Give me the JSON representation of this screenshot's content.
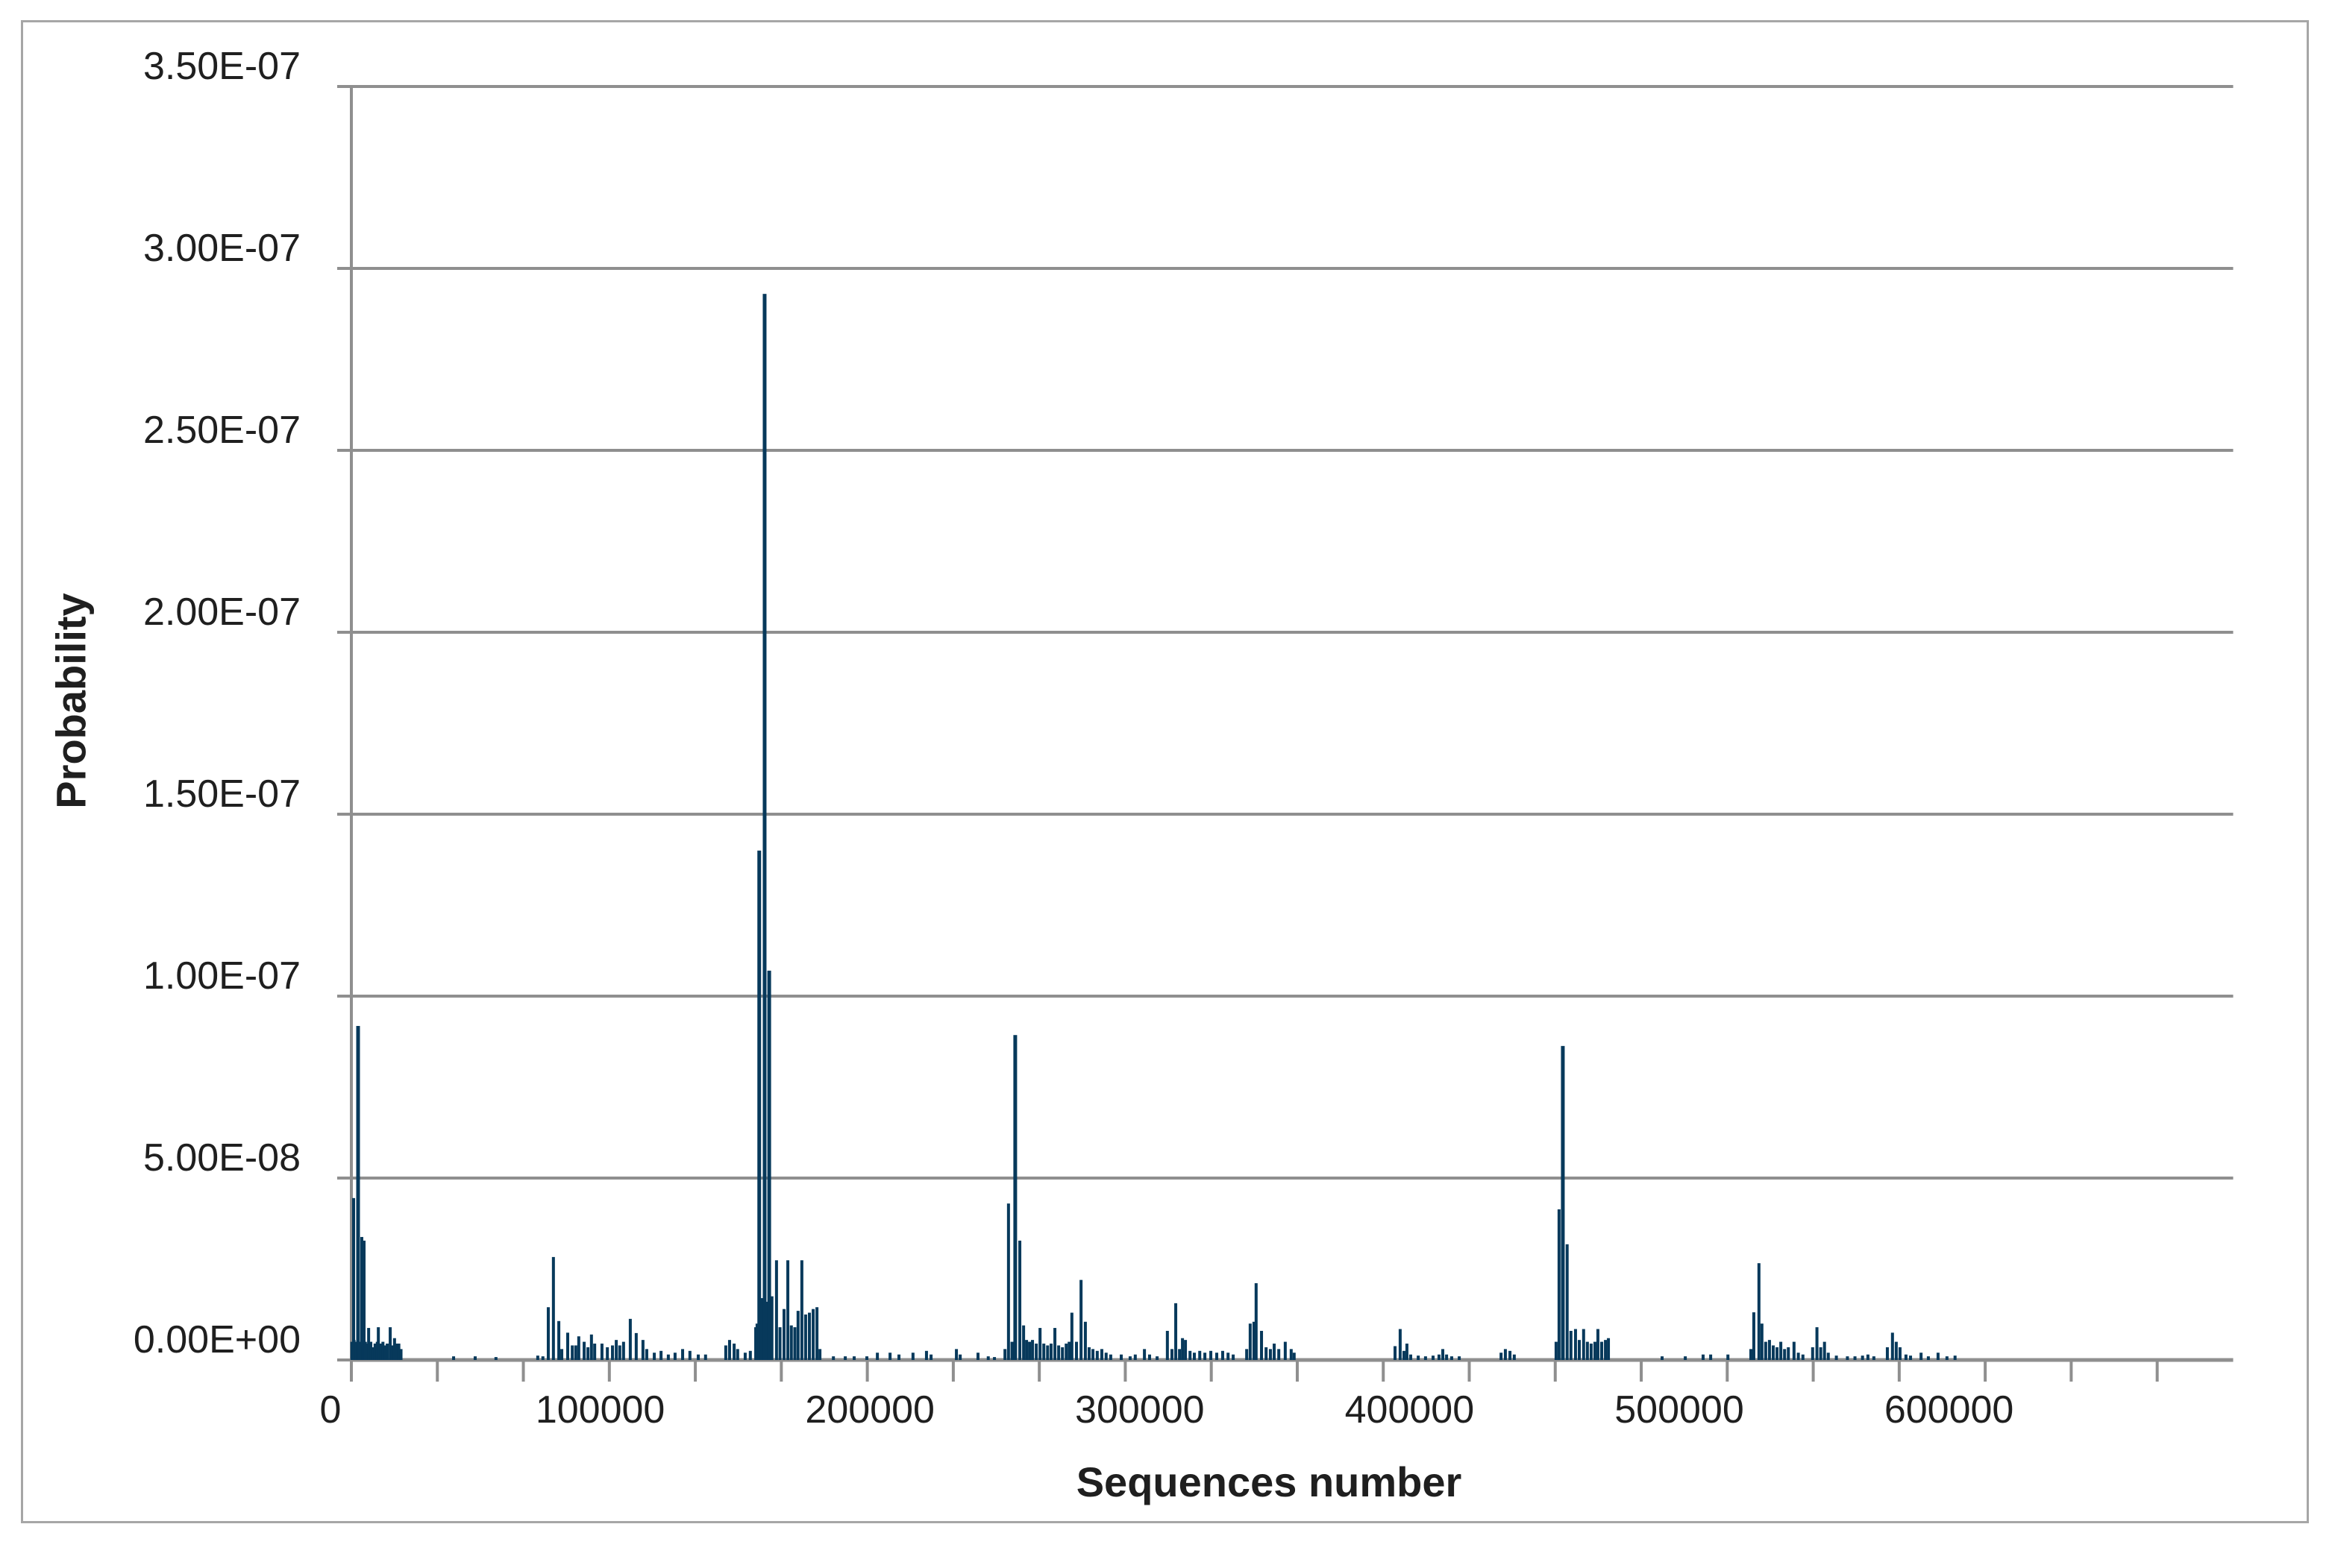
{
  "chart_data": {
    "type": "bar",
    "title": "",
    "xlabel": "Sequences number",
    "ylabel": "Probability",
    "x_tick_labels": [
      "0",
      "100000",
      "200000",
      "300000",
      "400000",
      "500000",
      "600000"
    ],
    "y_tick_labels": [
      "0.00E+00",
      "5.00E-08",
      "1.00E-07",
      "1.50E-07",
      "2.00E-07",
      "2.50E-07",
      "3.00E-07",
      "3.50E-07"
    ],
    "xlim": [
      0,
      697600
    ],
    "ylim": [
      0,
      3.5e-07
    ],
    "x_label_interval": 100000,
    "y_major_unit": 5e-08,
    "grid": "horizontal-only",
    "legend": "none",
    "bar_color": "#07395b",
    "gridline_color": "#8f8f8f",
    "border_color": "#a6a6a6",
    "text_color": "#1f1f1f",
    "points_format": "[sequence_number, probability]",
    "points": [
      [
        200,
        5e-09
      ],
      [
        830,
        4.45e-08
      ],
      [
        1000,
        5.5e-09
      ],
      [
        1800,
        5e-09
      ],
      [
        2490,
        9.18e-08
      ],
      [
        2900,
        5e-09
      ],
      [
        3600,
        4.5e-09
      ],
      [
        3870,
        3.38e-08
      ],
      [
        4400,
        4e-09
      ],
      [
        4700,
        3.28e-08
      ],
      [
        5200,
        5e-09
      ],
      [
        6000,
        4.5e-09
      ],
      [
        6400,
        8.8e-09
      ],
      [
        7200,
        5e-09
      ],
      [
        8000,
        3.5e-09
      ],
      [
        8800,
        4.5e-09
      ],
      [
        9600,
        5e-09
      ],
      [
        10000,
        9e-09
      ],
      [
        10900,
        4.5e-09
      ],
      [
        11700,
        5e-09
      ],
      [
        12500,
        4e-09
      ],
      [
        13300,
        4.5e-09
      ],
      [
        14400,
        9e-09
      ],
      [
        15200,
        4e-09
      ],
      [
        16000,
        6e-09
      ],
      [
        16800,
        4.5e-09
      ],
      [
        17600,
        4.5e-09
      ],
      [
        18400,
        3e-09
      ],
      [
        37900,
        1e-09
      ],
      [
        45900,
        1e-09
      ],
      [
        53600,
        8e-10
      ],
      [
        69100,
        1.2e-09
      ],
      [
        71000,
        1e-09
      ],
      [
        73000,
        1.45e-08
      ],
      [
        74900,
        2.83e-08
      ],
      [
        76900,
        1.07e-08
      ],
      [
        78000,
        3e-09
      ],
      [
        80200,
        7.5e-09
      ],
      [
        81900,
        4e-09
      ],
      [
        83200,
        4e-09
      ],
      [
        84300,
        6.5e-09
      ],
      [
        86300,
        5e-09
      ],
      [
        87700,
        3.5e-09
      ],
      [
        89000,
        7e-09
      ],
      [
        90200,
        4.5e-09
      ],
      [
        92900,
        4.5e-09
      ],
      [
        94900,
        3.5e-09
      ],
      [
        96800,
        4e-09
      ],
      [
        98200,
        5.5e-09
      ],
      [
        99500,
        4e-09
      ],
      [
        100900,
        5e-09
      ],
      [
        103400,
        1.13e-08
      ],
      [
        105600,
        7.4e-09
      ],
      [
        108100,
        5.5e-09
      ],
      [
        109500,
        3e-09
      ],
      [
        112300,
        2e-09
      ],
      [
        114800,
        2.5e-09
      ],
      [
        117500,
        1.5e-09
      ],
      [
        120000,
        2e-09
      ],
      [
        122800,
        3e-09
      ],
      [
        125500,
        2.5e-09
      ],
      [
        128600,
        1.5e-09
      ],
      [
        131300,
        1.5e-09
      ],
      [
        138800,
        4e-09
      ],
      [
        140200,
        5.5e-09
      ],
      [
        141900,
        4.5e-09
      ],
      [
        143200,
        3e-09
      ],
      [
        146000,
        2e-09
      ],
      [
        147900,
        2.5e-09
      ],
      [
        149900,
        9e-09
      ],
      [
        150400,
        1e-08
      ],
      [
        151200,
        1.4e-07
      ],
      [
        152100,
        1.7e-08
      ],
      [
        153200,
        2.93e-07
      ],
      [
        154000,
        1.6e-08
      ],
      [
        154900,
        1.07e-07
      ],
      [
        155900,
        1.75e-08
      ],
      [
        157600,
        2.74e-08
      ],
      [
        158900,
        9e-09
      ],
      [
        160400,
        1.4e-08
      ],
      [
        161800,
        2.74e-08
      ],
      [
        163100,
        9.5e-09
      ],
      [
        164400,
        9e-09
      ],
      [
        165600,
        1.35e-08
      ],
      [
        167000,
        2.74e-08
      ],
      [
        168400,
        1.25e-08
      ],
      [
        169800,
        1.3e-08
      ],
      [
        171200,
        1.4e-08
      ],
      [
        172600,
        1.45e-08
      ],
      [
        173700,
        3e-09
      ],
      [
        178700,
        1e-09
      ],
      [
        183100,
        1e-09
      ],
      [
        186400,
        1e-09
      ],
      [
        191100,
        1e-09
      ],
      [
        195000,
        2e-09
      ],
      [
        199700,
        2e-09
      ],
      [
        203000,
        1.5e-09
      ],
      [
        208200,
        2e-09
      ],
      [
        213200,
        2.5e-09
      ],
      [
        214900,
        1.5e-09
      ],
      [
        224300,
        3e-09
      ],
      [
        225700,
        1.5e-09
      ],
      [
        232300,
        2e-09
      ],
      [
        236100,
        1e-09
      ],
      [
        238400,
        8e-10
      ],
      [
        242300,
        3e-09
      ],
      [
        243600,
        4.3e-08
      ],
      [
        244900,
        5e-09
      ],
      [
        246100,
        8.93e-08
      ],
      [
        247800,
        3.28e-08
      ],
      [
        249200,
        9.5e-09
      ],
      [
        250300,
        5.5e-09
      ],
      [
        251400,
        5e-09
      ],
      [
        252500,
        5.5e-09
      ],
      [
        253900,
        4.5e-09
      ],
      [
        255300,
        8.8e-09
      ],
      [
        256700,
        4.5e-09
      ],
      [
        258100,
        4e-09
      ],
      [
        259400,
        4.5e-09
      ],
      [
        260800,
        8.8e-09
      ],
      [
        262200,
        4e-09
      ],
      [
        263600,
        3.5e-09
      ],
      [
        265000,
        4.5e-09
      ],
      [
        266100,
        5e-09
      ],
      [
        267100,
        1.3e-08
      ],
      [
        268800,
        5e-09
      ],
      [
        270500,
        2.2e-08
      ],
      [
        272100,
        1.05e-08
      ],
      [
        273500,
        3.5e-09
      ],
      [
        274900,
        3e-09
      ],
      [
        276500,
        2.5e-09
      ],
      [
        278200,
        3e-09
      ],
      [
        279800,
        2e-09
      ],
      [
        281500,
        1.5e-09
      ],
      [
        285400,
        1.5e-09
      ],
      [
        288700,
        1e-09
      ],
      [
        290600,
        1.5e-09
      ],
      [
        294000,
        3e-09
      ],
      [
        295900,
        1.5e-09
      ],
      [
        298700,
        1e-09
      ],
      [
        302500,
        8e-09
      ],
      [
        304200,
        3e-09
      ],
      [
        305600,
        1.56e-08
      ],
      [
        307000,
        3e-09
      ],
      [
        308100,
        6e-09
      ],
      [
        309200,
        5.5e-09
      ],
      [
        310900,
        2.5e-09
      ],
      [
        312500,
        2e-09
      ],
      [
        314500,
        2.5e-09
      ],
      [
        316400,
        2e-09
      ],
      [
        318600,
        2.5e-09
      ],
      [
        320800,
        2e-09
      ],
      [
        323000,
        2.5e-09
      ],
      [
        325000,
        2e-09
      ],
      [
        326900,
        1.5e-09
      ],
      [
        331900,
        3e-09
      ],
      [
        333200,
        1e-08
      ],
      [
        334600,
        1.05e-08
      ],
      [
        335400,
        2.11e-08
      ],
      [
        337400,
        8e-09
      ],
      [
        339100,
        3.5e-09
      ],
      [
        340700,
        3e-09
      ],
      [
        342100,
        4.5e-09
      ],
      [
        343800,
        3e-09
      ],
      [
        346200,
        5e-09
      ],
      [
        348400,
        3e-09
      ],
      [
        349500,
        2e-09
      ],
      [
        386900,
        3.8e-09
      ],
      [
        388800,
        8.5e-09
      ],
      [
        390200,
        2.5e-09
      ],
      [
        391300,
        4.5e-09
      ],
      [
        392700,
        1.5e-09
      ],
      [
        395500,
        1.2e-09
      ],
      [
        398200,
        1e-09
      ],
      [
        401000,
        1.2e-09
      ],
      [
        403200,
        1.5e-09
      ],
      [
        404600,
        3e-09
      ],
      [
        406000,
        1.5e-09
      ],
      [
        407900,
        1e-09
      ],
      [
        410700,
        1e-09
      ],
      [
        426200,
        2e-09
      ],
      [
        427800,
        3e-09
      ],
      [
        429500,
        2.5e-09
      ],
      [
        431100,
        1.5e-09
      ],
      [
        446600,
        5e-09
      ],
      [
        447700,
        4.14e-08
      ],
      [
        449100,
        8.63e-08
      ],
      [
        450700,
        3.18e-08
      ],
      [
        452100,
        8e-09
      ],
      [
        453800,
        8.5e-09
      ],
      [
        455200,
        5.5e-09
      ],
      [
        456800,
        8.5e-09
      ],
      [
        458200,
        5e-09
      ],
      [
        459600,
        4.5e-09
      ],
      [
        461000,
        5e-09
      ],
      [
        462100,
        8.5e-09
      ],
      [
        463500,
        5e-09
      ],
      [
        464900,
        5.5e-09
      ],
      [
        466000,
        6e-09
      ],
      [
        485900,
        1e-09
      ],
      [
        494500,
        1e-09
      ],
      [
        501100,
        1.5e-09
      ],
      [
        503900,
        1.5e-09
      ],
      [
        510300,
        1.5e-09
      ],
      [
        518800,
        3e-09
      ],
      [
        519900,
        1.31e-08
      ],
      [
        521800,
        2.66e-08
      ],
      [
        522900,
        1e-08
      ],
      [
        524300,
        5e-09
      ],
      [
        525700,
        5.5e-09
      ],
      [
        527100,
        4e-09
      ],
      [
        528500,
        3.5e-09
      ],
      [
        529900,
        5e-09
      ],
      [
        531300,
        3e-09
      ],
      [
        532700,
        3.5e-09
      ],
      [
        534800,
        5e-09
      ],
      [
        536400,
        2e-09
      ],
      [
        538100,
        1.5e-09
      ],
      [
        541700,
        3.5e-09
      ],
      [
        543300,
        9e-09
      ],
      [
        544700,
        3.5e-09
      ],
      [
        546100,
        5e-09
      ],
      [
        547500,
        2e-09
      ],
      [
        550500,
        1.2e-09
      ],
      [
        554600,
        1e-09
      ],
      [
        557400,
        1e-09
      ],
      [
        560200,
        1.2e-09
      ],
      [
        562200,
        1.5e-09
      ],
      [
        564400,
        1e-09
      ],
      [
        569400,
        3.5e-09
      ],
      [
        571300,
        7.5e-09
      ],
      [
        572700,
        5e-09
      ],
      [
        574100,
        3.5e-09
      ],
      [
        576300,
        1.5e-09
      ],
      [
        578000,
        1.2e-09
      ],
      [
        581900,
        2e-09
      ],
      [
        584600,
        1e-09
      ],
      [
        588200,
        2e-09
      ],
      [
        591500,
        1e-09
      ],
      [
        594500,
        1.2e-09
      ]
    ]
  }
}
